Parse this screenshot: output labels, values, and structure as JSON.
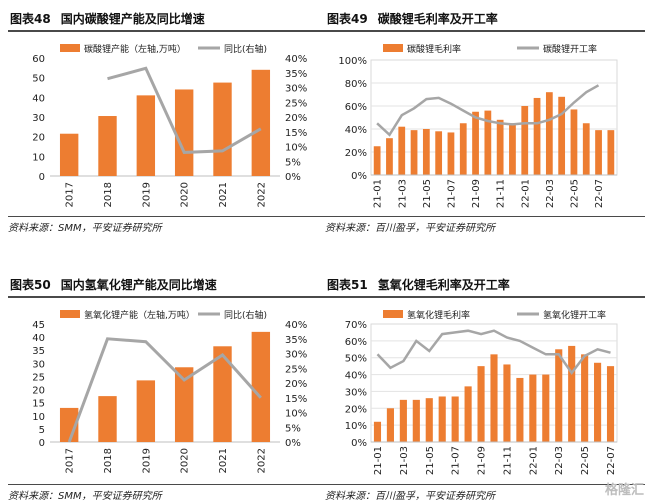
{
  "colors": {
    "bar": "#ED7D31",
    "line": "#A6A6A6"
  },
  "charts": [
    {
      "fig": "图表48",
      "title": "国内碳酸锂产能及同比增速",
      "source": "资料来源：SMM，平安证券研究所",
      "chart_data": {
        "type": "bar",
        "categories": [
          "2017",
          "2018",
          "2019",
          "2020",
          "2021",
          "2022"
        ],
        "series": [
          {
            "name": "碳酸锂产能（左轴,万吨）",
            "type": "bar",
            "axis": "left",
            "values": [
              21.5,
              30.5,
              41,
              44,
              47.5,
              54
            ]
          },
          {
            "name": "同比(右轴)",
            "type": "line",
            "axis": "right",
            "values": [
              null,
              33,
              36.5,
              8,
              8.5,
              16
            ]
          }
        ],
        "left_axis": {
          "min": 0,
          "max": 60,
          "ticks": [
            "0",
            "10",
            "20",
            "30",
            "40",
            "50",
            "60"
          ]
        },
        "right_axis": {
          "min": 0,
          "max": 40,
          "ticks": [
            "0%",
            "5%",
            "10%",
            "15%",
            "20%",
            "25%",
            "30%",
            "35%",
            "40%"
          ]
        },
        "legend": "top"
      }
    },
    {
      "fig": "图表49",
      "title": "碳酸锂毛利率及开工率",
      "source": "资料来源：百川盈孚，平安证券研究所",
      "chart_data": {
        "type": "bar",
        "categories": [
          "21-01",
          "21-02",
          "21-03",
          "21-04",
          "21-05",
          "21-06",
          "21-07",
          "21-08",
          "21-09",
          "21-10",
          "21-11",
          "21-12",
          "22-01",
          "22-02",
          "22-03",
          "22-04",
          "22-05",
          "22-06",
          "22-07",
          "22-08"
        ],
        "tick_labels": [
          "21-01",
          "21-03",
          "21-05",
          "21-07",
          "21-09",
          "21-11",
          "22-01",
          "22-03",
          "22-05",
          "22-07"
        ],
        "series": [
          {
            "name": "碳酸锂毛利率",
            "type": "bar",
            "values": [
              25,
              32,
              42,
              39,
              40,
              38,
              37,
              45,
              55,
              56,
              48,
              45,
              60,
              67,
              72,
              68,
              57,
              45,
              39,
              39
            ]
          },
          {
            "name": "碳酸锂开工率",
            "type": "line",
            "values": [
              45,
              35,
              52,
              58,
              66,
              67,
              62,
              56,
              50,
              47,
              45,
              44,
              45,
              45,
              48,
              53,
              63,
              72,
              78,
              null
            ]
          }
        ],
        "y_axis": {
          "min": 0,
          "max": 100,
          "ticks": [
            "0%",
            "20%",
            "40%",
            "60%",
            "80%",
            "100%"
          ]
        },
        "legend": "top"
      }
    },
    {
      "fig": "图表50",
      "title": "国内氢氧化锂产能及同比增速",
      "source": "资料来源：SMM，平安证券研究所",
      "chart_data": {
        "type": "bar",
        "categories": [
          "2017",
          "2018",
          "2019",
          "2020",
          "2021",
          "2022"
        ],
        "series": [
          {
            "name": "氢氧化锂产能（左轴,万吨）",
            "type": "bar",
            "axis": "left",
            "values": [
              13,
              17.5,
              23.5,
              28.5,
              36.5,
              42
            ]
          },
          {
            "name": "同比(右轴)",
            "type": "line",
            "axis": "right",
            "values": [
              0,
              35,
              34,
              21,
              29.5,
              15
            ]
          }
        ],
        "left_axis": {
          "min": 0,
          "max": 45,
          "ticks": [
            "0",
            "5",
            "10",
            "15",
            "20",
            "25",
            "30",
            "35",
            "40",
            "45"
          ]
        },
        "right_axis": {
          "min": 0,
          "max": 40,
          "ticks": [
            "0%",
            "5%",
            "10%",
            "15%",
            "20%",
            "25%",
            "30%",
            "35%",
            "40%"
          ]
        },
        "legend": "top"
      }
    },
    {
      "fig": "图表51",
      "title": "氢氧化锂毛利率及开工率",
      "source": "资料来源：百川盈孚，平安证券研究所",
      "chart_data": {
        "type": "bar",
        "categories": [
          "21-01",
          "21-02",
          "21-03",
          "21-04",
          "21-05",
          "21-06",
          "21-07",
          "21-08",
          "21-09",
          "21-10",
          "21-11",
          "21-12",
          "22-01",
          "22-02",
          "22-03",
          "22-04",
          "22-05",
          "22-06",
          "22-07"
        ],
        "tick_labels": [
          "21-01",
          "21-03",
          "21-05",
          "21-07",
          "21-09",
          "21-11",
          "22-01",
          "22-03",
          "22-05",
          "22-07"
        ],
        "series": [
          {
            "name": "氢氧化锂毛利率",
            "type": "bar",
            "values": [
              12,
              20,
              25,
              25,
              26,
              27,
              27,
              33,
              45,
              52,
              46,
              38,
              40,
              40,
              55,
              57,
              52,
              47,
              45
            ]
          },
          {
            "name": "氢氧化锂开工率",
            "type": "line",
            "values": [
              52,
              44,
              48,
              60,
              54,
              64,
              65,
              66,
              64,
              66,
              62,
              60,
              56,
              52,
              52,
              41,
              51,
              55,
              53
            ]
          }
        ],
        "y_axis": {
          "min": 0,
          "max": 70,
          "ticks": [
            "0%",
            "10%",
            "20%",
            "30%",
            "40%",
            "50%",
            "60%",
            "70%"
          ]
        },
        "legend": "top"
      }
    }
  ],
  "watermark": "格隆汇"
}
